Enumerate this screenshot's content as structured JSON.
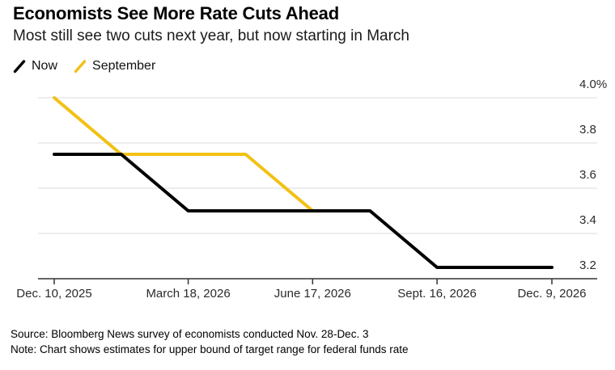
{
  "header": {
    "title": "Economists See More Rate Cuts Ahead",
    "subtitle": "Most still see two cuts next year, but now starting in March"
  },
  "legend": {
    "items": [
      {
        "label": "Now",
        "color": "#000000"
      },
      {
        "label": "September",
        "color": "#F2C115"
      }
    ]
  },
  "colors": {
    "line_now": "#000000",
    "line_september": "#F2C115",
    "gridline": "#E2E2E2",
    "axis": "#333333",
    "background": "#FFFFFF"
  },
  "chart_data": {
    "type": "line",
    "title": "Economists See More Rate Cuts Ahead",
    "subtitle": "Most still see two cuts next year, but now starting in March",
    "unit": "%",
    "grid": true,
    "legend_position": "top-left",
    "x_axis": {
      "domain_days": [
        0,
        364
      ],
      "ticks": [
        {
          "label": "Dec. 10, 2025",
          "day": 0
        },
        {
          "label": "March 18, 2026",
          "day": 98
        },
        {
          "label": "June 17, 2026",
          "day": 189
        },
        {
          "label": "Sept. 16, 2026",
          "day": 280
        },
        {
          "label": "Dec. 9, 2026",
          "day": 364
        }
      ]
    },
    "y_axis": {
      "range": [
        3.2,
        4.0
      ],
      "ticks": [
        {
          "label": "4.0%",
          "value": 4.0
        },
        {
          "label": "3.8",
          "value": 3.8
        },
        {
          "label": "3.6",
          "value": 3.6
        },
        {
          "label": "3.4",
          "value": 3.4
        },
        {
          "label": "3.2",
          "value": 3.2
        }
      ]
    },
    "series": [
      {
        "name": "September",
        "color": "#F2C115",
        "points": [
          {
            "day": 0,
            "value": 4.0
          },
          {
            "day": 49,
            "value": 3.75
          },
          {
            "day": 140,
            "value": 3.75
          },
          {
            "day": 189,
            "value": 3.5
          }
        ]
      },
      {
        "name": "Now",
        "color": "#000000",
        "points": [
          {
            "day": 0,
            "value": 3.75
          },
          {
            "day": 49,
            "value": 3.75
          },
          {
            "day": 98,
            "value": 3.5
          },
          {
            "day": 231,
            "value": 3.5
          },
          {
            "day": 280,
            "value": 3.25
          },
          {
            "day": 364,
            "value": 3.25
          }
        ]
      }
    ]
  },
  "footer": {
    "source": "Source: Bloomberg News survey of economists conducted Nov. 28-Dec. 3",
    "note": "Note: Chart shows estimates for upper bound of target range for federal funds rate"
  }
}
